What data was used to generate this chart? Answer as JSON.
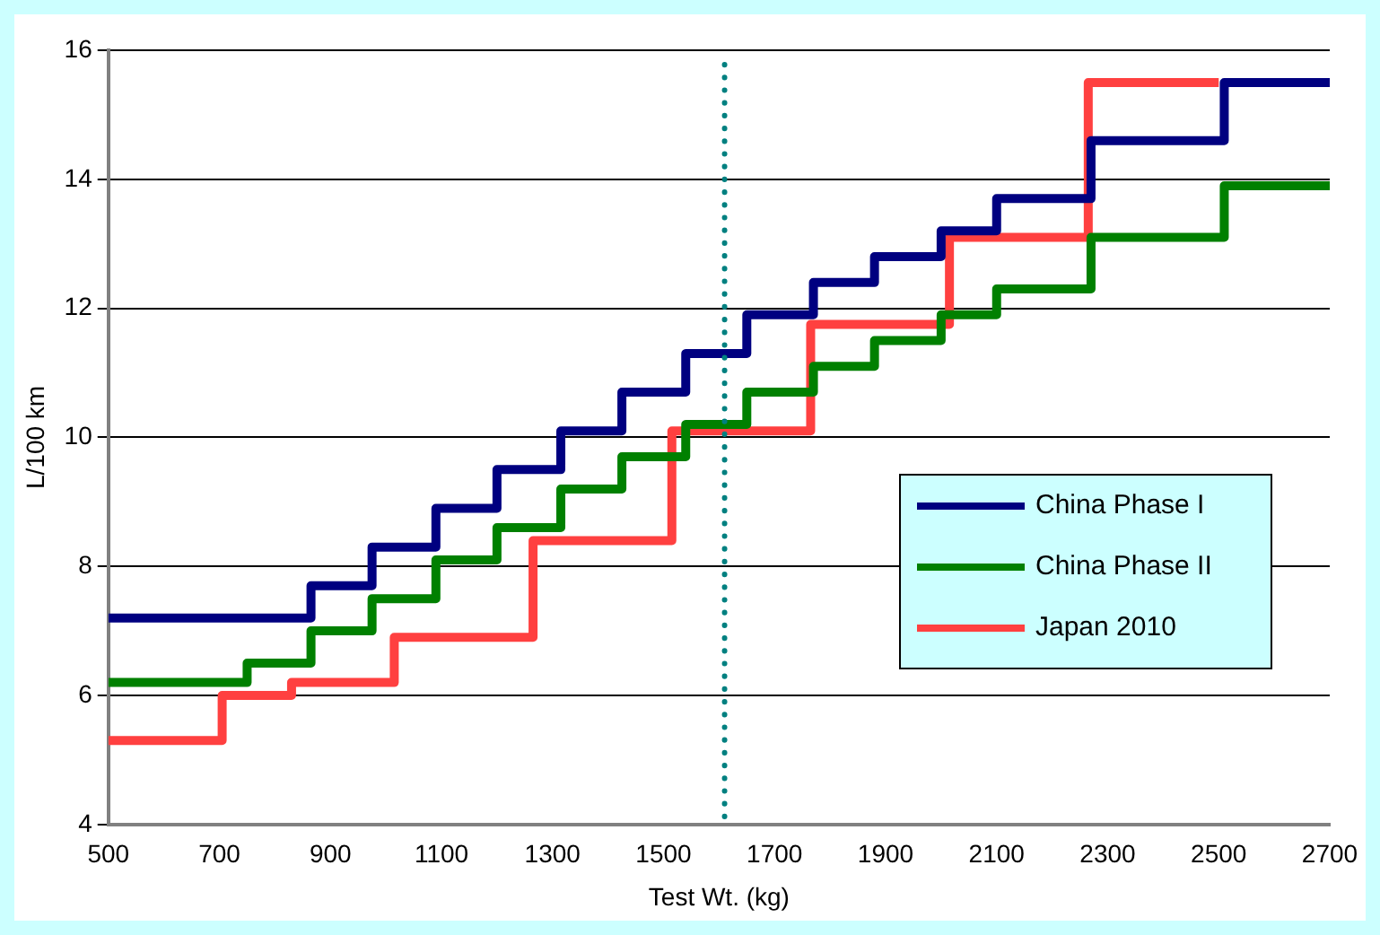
{
  "chart_data": {
    "type": "step",
    "xlabel": "Test Wt. (kg)",
    "ylabel": "L/100 km",
    "xlim": [
      500,
      2700
    ],
    "xticks": [
      500,
      700,
      900,
      1100,
      1300,
      1500,
      1700,
      1900,
      2100,
      2300,
      2500,
      2700
    ],
    "ylim": [
      4,
      16
    ],
    "yticks": [
      4,
      6,
      8,
      10,
      12,
      14,
      16
    ],
    "grid": "y",
    "legend": "right",
    "marker": "none",
    "ref_lines": [
      {
        "axis": "x",
        "value": 1610,
        "color": "#008080",
        "line_style": "dotted"
      }
    ],
    "series": [
      {
        "name": "China Phase I",
        "color": "#000080",
        "x": [
          500,
          865,
          975,
          1090,
          1200,
          1315,
          1425,
          1540,
          1650,
          1770,
          1880,
          2000,
          2100,
          2270,
          2510,
          2700
        ],
        "values": [
          7.2,
          7.7,
          8.3,
          8.9,
          9.5,
          10.1,
          10.7,
          11.3,
          11.9,
          12.4,
          12.8,
          13.2,
          13.7,
          14.6,
          15.5,
          15.5
        ]
      },
      {
        "name": "China Phase II",
        "color": "#008000",
        "x": [
          500,
          750,
          865,
          975,
          1090,
          1200,
          1315,
          1425,
          1540,
          1650,
          1770,
          1880,
          2000,
          2100,
          2270,
          2510,
          2700
        ],
        "values": [
          6.2,
          6.5,
          7.0,
          7.5,
          8.1,
          8.6,
          9.2,
          9.7,
          10.2,
          10.7,
          11.1,
          11.5,
          11.9,
          12.3,
          13.1,
          13.9,
          13.9
        ]
      },
      {
        "name": "Japan 2010",
        "color": "#ff4040",
        "x": [
          500,
          705,
          830,
          1015,
          1265,
          1515,
          1765,
          2015,
          2265,
          2500
        ],
        "values": [
          5.3,
          6.0,
          6.2,
          6.9,
          8.4,
          10.1,
          11.75,
          13.1,
          15.5,
          15.5
        ]
      }
    ]
  }
}
